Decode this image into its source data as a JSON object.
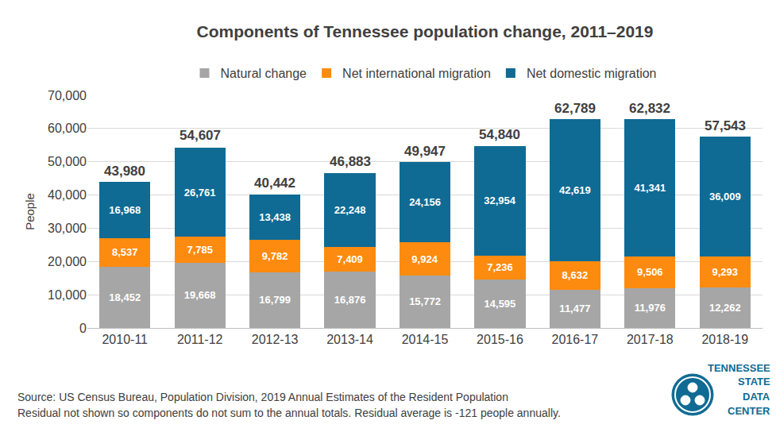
{
  "chart_data": {
    "type": "bar",
    "stacked": true,
    "title": "Components of Tennessee population change, 2011–2019",
    "y_label": "People",
    "categories": [
      "2010-11",
      "2011-12",
      "2012-13",
      "2013-14",
      "2014-15",
      "2015-16",
      "2016-17",
      "2017-18",
      "2018-19"
    ],
    "series": [
      {
        "name": "Natural change",
        "color": "#a6a6a6",
        "values": [
          18452,
          19668,
          16799,
          16876,
          15772,
          14595,
          11477,
          11976,
          12262
        ],
        "value_labels": [
          "18,452",
          "19,668",
          "16,799",
          "16,876",
          "15,772",
          "14,595",
          "11,477",
          "11,976",
          "12,262"
        ]
      },
      {
        "name": "Net international migration",
        "color": "#fd8b0f",
        "values": [
          8537,
          7785,
          9782,
          7409,
          9924,
          7236,
          8632,
          9506,
          9293
        ],
        "value_labels": [
          "8,537",
          "7,785",
          "9,782",
          "7,409",
          "9,924",
          "7,236",
          "8,632",
          "9,506",
          "9,293"
        ]
      },
      {
        "name": "Net domestic migration",
        "color": "#0f6b94",
        "values": [
          16968,
          26761,
          13438,
          22248,
          24156,
          32954,
          42619,
          41341,
          36009
        ],
        "value_labels": [
          "16,968",
          "26,761",
          "13,438",
          "22,248",
          "24,156",
          "32,954",
          "42,619",
          "41,341",
          "36,009"
        ]
      }
    ],
    "totals": [
      43980,
      54607,
      40442,
      46883,
      49947,
      54840,
      62789,
      62832,
      57543
    ],
    "total_labels": [
      "43,980",
      "54,607",
      "40,442",
      "46,883",
      "49,947",
      "54,840",
      "62,789",
      "62,832",
      "57,543"
    ],
    "data_labels": true,
    "ylim": [
      0,
      70000
    ],
    "yticks": [
      0,
      {
        "value": 10000,
        "label": "10,000"
      },
      {
        "value": 20000,
        "label": "20,000"
      },
      {
        "value": 30000,
        "label": "30,000"
      },
      {
        "value": 40000,
        "label": "40,000"
      },
      {
        "value": 50000,
        "label": "50,000"
      },
      {
        "value": 60000,
        "label": "60,000"
      },
      {
        "value": 70000,
        "label": "70,000"
      }
    ],
    "grid": true,
    "legend": "top",
    "annotations": [
      "Source: US Census Bureau, Population Division, 2019 Annual Estimates of the Resident Population",
      "Residual not shown so components do not sum to the annual totals. Residual average is -121 people annually."
    ],
    "logo_text": [
      "TENNESSEE",
      "STATE",
      "DATA",
      "CENTER"
    ]
  }
}
